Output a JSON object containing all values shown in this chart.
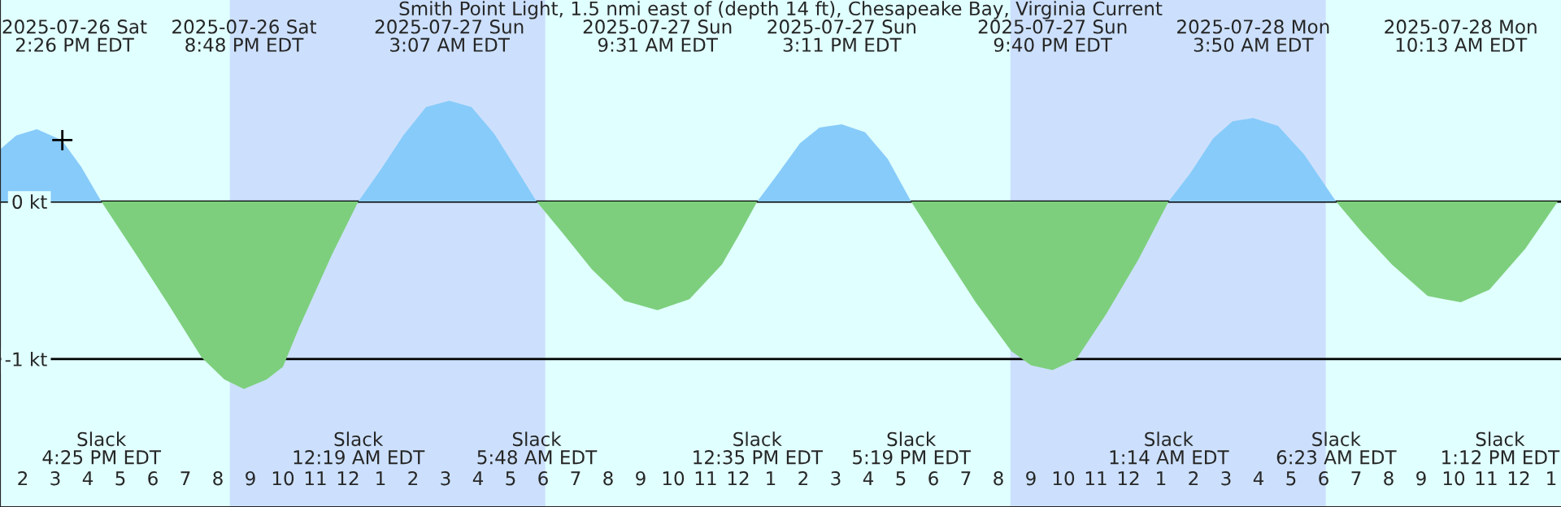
{
  "chart_data": {
    "type": "area",
    "title": "Smith Point Light, 1.5 nmi east of (depth 14 ft), Chesapeake Bay, Virginia Current",
    "xlim": [
      "2025-07-26T13:18",
      "2025-07-28T13:18"
    ],
    "xticks": [
      {
        "value": "2025-07-26T14:00",
        "label": "2"
      },
      {
        "value": "2025-07-26T15:00",
        "label": "3"
      },
      {
        "value": "2025-07-26T16:00",
        "label": "4"
      },
      {
        "value": "2025-07-26T17:00",
        "label": "5"
      },
      {
        "value": "2025-07-26T18:00",
        "label": "6"
      },
      {
        "value": "2025-07-26T19:00",
        "label": "7"
      },
      {
        "value": "2025-07-26T20:00",
        "label": "8"
      },
      {
        "value": "2025-07-26T21:00",
        "label": "9"
      },
      {
        "value": "2025-07-26T22:00",
        "label": "10"
      },
      {
        "value": "2025-07-26T23:00",
        "label": "11"
      },
      {
        "value": "2025-07-27T00:00",
        "label": "12"
      },
      {
        "value": "2025-07-27T01:00",
        "label": "1"
      },
      {
        "value": "2025-07-27T02:00",
        "label": "2"
      },
      {
        "value": "2025-07-27T03:00",
        "label": "3"
      },
      {
        "value": "2025-07-27T04:00",
        "label": "4"
      },
      {
        "value": "2025-07-27T05:00",
        "label": "5"
      },
      {
        "value": "2025-07-27T06:00",
        "label": "6"
      },
      {
        "value": "2025-07-27T07:00",
        "label": "7"
      },
      {
        "value": "2025-07-27T08:00",
        "label": "8"
      },
      {
        "value": "2025-07-27T09:00",
        "label": "9"
      },
      {
        "value": "2025-07-27T10:00",
        "label": "10"
      },
      {
        "value": "2025-07-27T11:00",
        "label": "11"
      },
      {
        "value": "2025-07-27T12:00",
        "label": "12"
      },
      {
        "value": "2025-07-27T13:00",
        "label": "1"
      },
      {
        "value": "2025-07-27T14:00",
        "label": "2"
      },
      {
        "value": "2025-07-27T15:00",
        "label": "3"
      },
      {
        "value": "2025-07-27T16:00",
        "label": "4"
      },
      {
        "value": "2025-07-27T17:00",
        "label": "5"
      },
      {
        "value": "2025-07-27T18:00",
        "label": "6"
      },
      {
        "value": "2025-07-27T19:00",
        "label": "7"
      },
      {
        "value": "2025-07-27T20:00",
        "label": "8"
      },
      {
        "value": "2025-07-27T21:00",
        "label": "9"
      },
      {
        "value": "2025-07-27T22:00",
        "label": "10"
      },
      {
        "value": "2025-07-27T23:00",
        "label": "11"
      },
      {
        "value": "2025-07-28T00:00",
        "label": "12"
      },
      {
        "value": "2025-07-28T01:00",
        "label": "1"
      },
      {
        "value": "2025-07-28T02:00",
        "label": "2"
      },
      {
        "value": "2025-07-28T03:00",
        "label": "3"
      },
      {
        "value": "2025-07-28T04:00",
        "label": "4"
      },
      {
        "value": "2025-07-28T05:00",
        "label": "5"
      },
      {
        "value": "2025-07-28T06:00",
        "label": "6"
      },
      {
        "value": "2025-07-28T07:00",
        "label": "7"
      },
      {
        "value": "2025-07-28T08:00",
        "label": "8"
      },
      {
        "value": "2025-07-28T09:00",
        "label": "9"
      },
      {
        "value": "2025-07-28T10:00",
        "label": "10"
      },
      {
        "value": "2025-07-28T11:00",
        "label": "11"
      },
      {
        "value": "2025-07-28T12:00",
        "label": "12"
      },
      {
        "value": "2025-07-28T13:00",
        "label": "1"
      }
    ],
    "ylim": [
      -1.94,
      1.28
    ],
    "yticks": [
      {
        "value": 0,
        "label": "0 kt"
      },
      {
        "value": -1,
        "label": "-1 kt"
      }
    ],
    "grid": "y",
    "bands": [
      {
        "axis": "x",
        "from": "2025-07-26T20:22",
        "to": "2025-07-27T06:04",
        "color": "#cce0fd"
      },
      {
        "axis": "x",
        "from": "2025-07-27T20:22",
        "to": "2025-07-28T06:04",
        "color": "#cce0fd"
      }
    ],
    "series": [
      {
        "color": "#87cbfa",
        "x": [
          "2025-07-26T13:18",
          "2025-07-26T13:48",
          "2025-07-26T14:26",
          "2025-07-26T15:12",
          "2025-07-26T15:48",
          "2025-07-26T16:25",
          "2025-07-26T20:00",
          "2025-07-27T00:19",
          "2025-07-27T01:00",
          "2025-07-27T01:42",
          "2025-07-27T02:24",
          "2025-07-27T03:07",
          "2025-07-27T03:48",
          "2025-07-27T04:30",
          "2025-07-27T05:12",
          "2025-07-27T05:48",
          "2025-07-27T09:00",
          "2025-07-27T12:35",
          "2025-07-27T13:12",
          "2025-07-27T13:54",
          "2025-07-27T14:30",
          "2025-07-27T15:11",
          "2025-07-27T15:54",
          "2025-07-27T16:36",
          "2025-07-27T17:19",
          "2025-07-27T21:00",
          "2025-07-28T01:14",
          "2025-07-28T01:54",
          "2025-07-28T02:36",
          "2025-07-28T03:12",
          "2025-07-28T03:50",
          "2025-07-28T04:36",
          "2025-07-28T05:24",
          "2025-07-28T06:23"
        ],
        "values": [
          0.33,
          0.42,
          0.46,
          0.39,
          0.22,
          0,
          null,
          0,
          0.2,
          0.42,
          0.6,
          0.64,
          0.6,
          0.43,
          0.2,
          0,
          null,
          0,
          0.17,
          0.37,
          0.47,
          0.49,
          0.44,
          0.27,
          0,
          null,
          0,
          0.18,
          0.4,
          0.51,
          0.53,
          0.48,
          0.3,
          0
        ]
      },
      {
        "color": "#7dcf7d",
        "x": [
          "2025-07-26T16:25",
          "2025-07-26T17:30",
          "2025-07-26T18:30",
          "2025-07-26T19:30",
          "2025-07-26T20:12",
          "2025-07-26T20:48",
          "2025-07-26T21:30",
          "2025-07-26T22:00",
          "2025-07-26T22:30",
          "2025-07-26T23:30",
          "2025-07-27T00:19",
          "2025-07-27T03:00",
          "2025-07-27T05:48",
          "2025-07-27T06:36",
          "2025-07-27T07:30",
          "2025-07-27T08:30",
          "2025-07-27T09:31",
          "2025-07-27T10:30",
          "2025-07-27T11:30",
          "2025-07-27T12:00",
          "2025-07-27T12:35",
          "2025-07-27T15:00",
          "2025-07-27T17:19",
          "2025-07-27T18:18",
          "2025-07-27T19:18",
          "2025-07-27T20:24",
          "2025-07-27T21:00",
          "2025-07-27T21:40",
          "2025-07-27T22:24",
          "2025-07-27T23:18",
          "2025-07-28T00:18",
          "2025-07-28T01:14",
          "2025-07-28T04:00",
          "2025-07-28T06:23",
          "2025-07-28T07:12",
          "2025-07-28T08:06",
          "2025-07-28T09:12",
          "2025-07-28T10:13",
          "2025-07-28T11:06",
          "2025-07-28T12:12",
          "2025-07-28T13:12"
        ],
        "values": [
          0,
          -0.34,
          -0.66,
          -0.99,
          -1.13,
          -1.19,
          -1.13,
          -1.05,
          -0.8,
          -0.34,
          0,
          null,
          0,
          -0.2,
          -0.43,
          -0.63,
          -0.69,
          -0.62,
          -0.4,
          -0.22,
          0,
          null,
          0,
          -0.32,
          -0.64,
          -0.95,
          -1.04,
          -1.07,
          -1.0,
          -0.72,
          -0.37,
          0,
          null,
          0,
          -0.2,
          -0.4,
          -0.6,
          -0.64,
          -0.56,
          -0.3,
          0
        ]
      },
      {
        "type": "scatter",
        "color": "#000000",
        "marker": "cross",
        "x": [
          "2025-07-26T15:13"
        ],
        "values": [
          0.39
        ]
      }
    ],
    "annotations": [
      "2025-07-26 Sat\n2:26 PM EDT",
      "2025-07-26 Sat\n8:48 PM EDT",
      "2025-07-27 Sun\n3:07 AM EDT",
      "2025-07-27 Sun\n9:31 AM EDT",
      "2025-07-27 Sun\n3:11 PM EDT",
      "2025-07-27 Sun\n9:40 PM EDT",
      "2025-07-28 Mon\n3:50 AM EDT",
      "2025-07-28 Mon\n10:13 AM EDT",
      "Slack\n4:25 PM EDT",
      "Slack\n12:19 AM EDT",
      "Slack\n5:48 AM EDT",
      "Slack\n12:35 PM EDT",
      "Slack\n5:19 PM EDT",
      "Slack\n1:14 AM EDT",
      "Slack\n6:23 AM EDT",
      "Slack\n1:12 PM EDT"
    ]
  }
}
